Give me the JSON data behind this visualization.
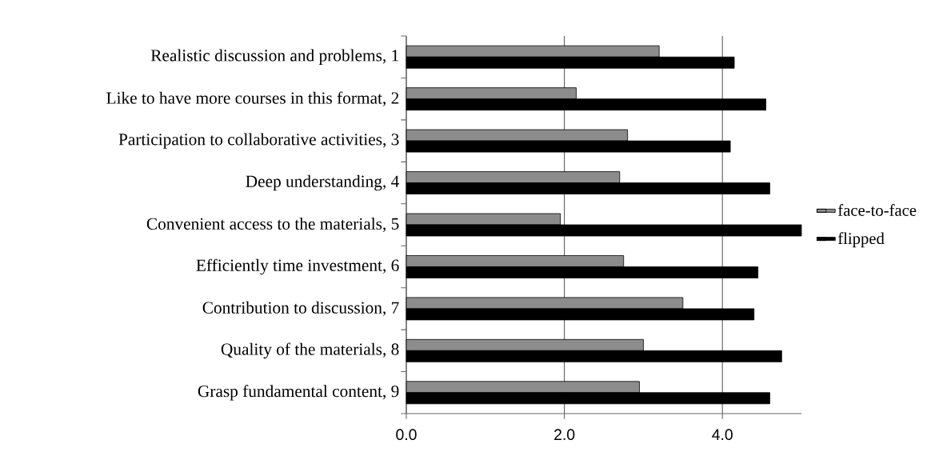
{
  "chart_data": {
    "type": "bar",
    "orientation": "horizontal",
    "categories": [
      "Realistic discussion and problems, 1",
      "Like to have more courses in this format, 2",
      "Participation to collaborative activities, 3",
      "Deep understanding, 4",
      "Convenient access to the materials, 5",
      "Efficiently time investment, 6",
      "Contribution to discussion, 7",
      "Quality of the materials, 8",
      "Grasp fundamental content, 9"
    ],
    "series": [
      {
        "name": "face-to-face",
        "color": "#8c8c8c",
        "values": [
          3.2,
          2.15,
          2.8,
          2.7,
          1.95,
          2.75,
          3.5,
          3.0,
          2.95
        ]
      },
      {
        "name": "flipped",
        "color": "#000000",
        "values": [
          4.15,
          4.55,
          4.1,
          4.6,
          5.0,
          4.45,
          4.4,
          4.75,
          4.6
        ]
      }
    ],
    "xlim": [
      0,
      5
    ],
    "xticks": [
      {
        "value": 0,
        "label": "0.0"
      },
      {
        "value": 2,
        "label": "2.0"
      },
      {
        "value": 4,
        "label": "4.0"
      }
    ],
    "grid": "x",
    "legend": "right"
  }
}
